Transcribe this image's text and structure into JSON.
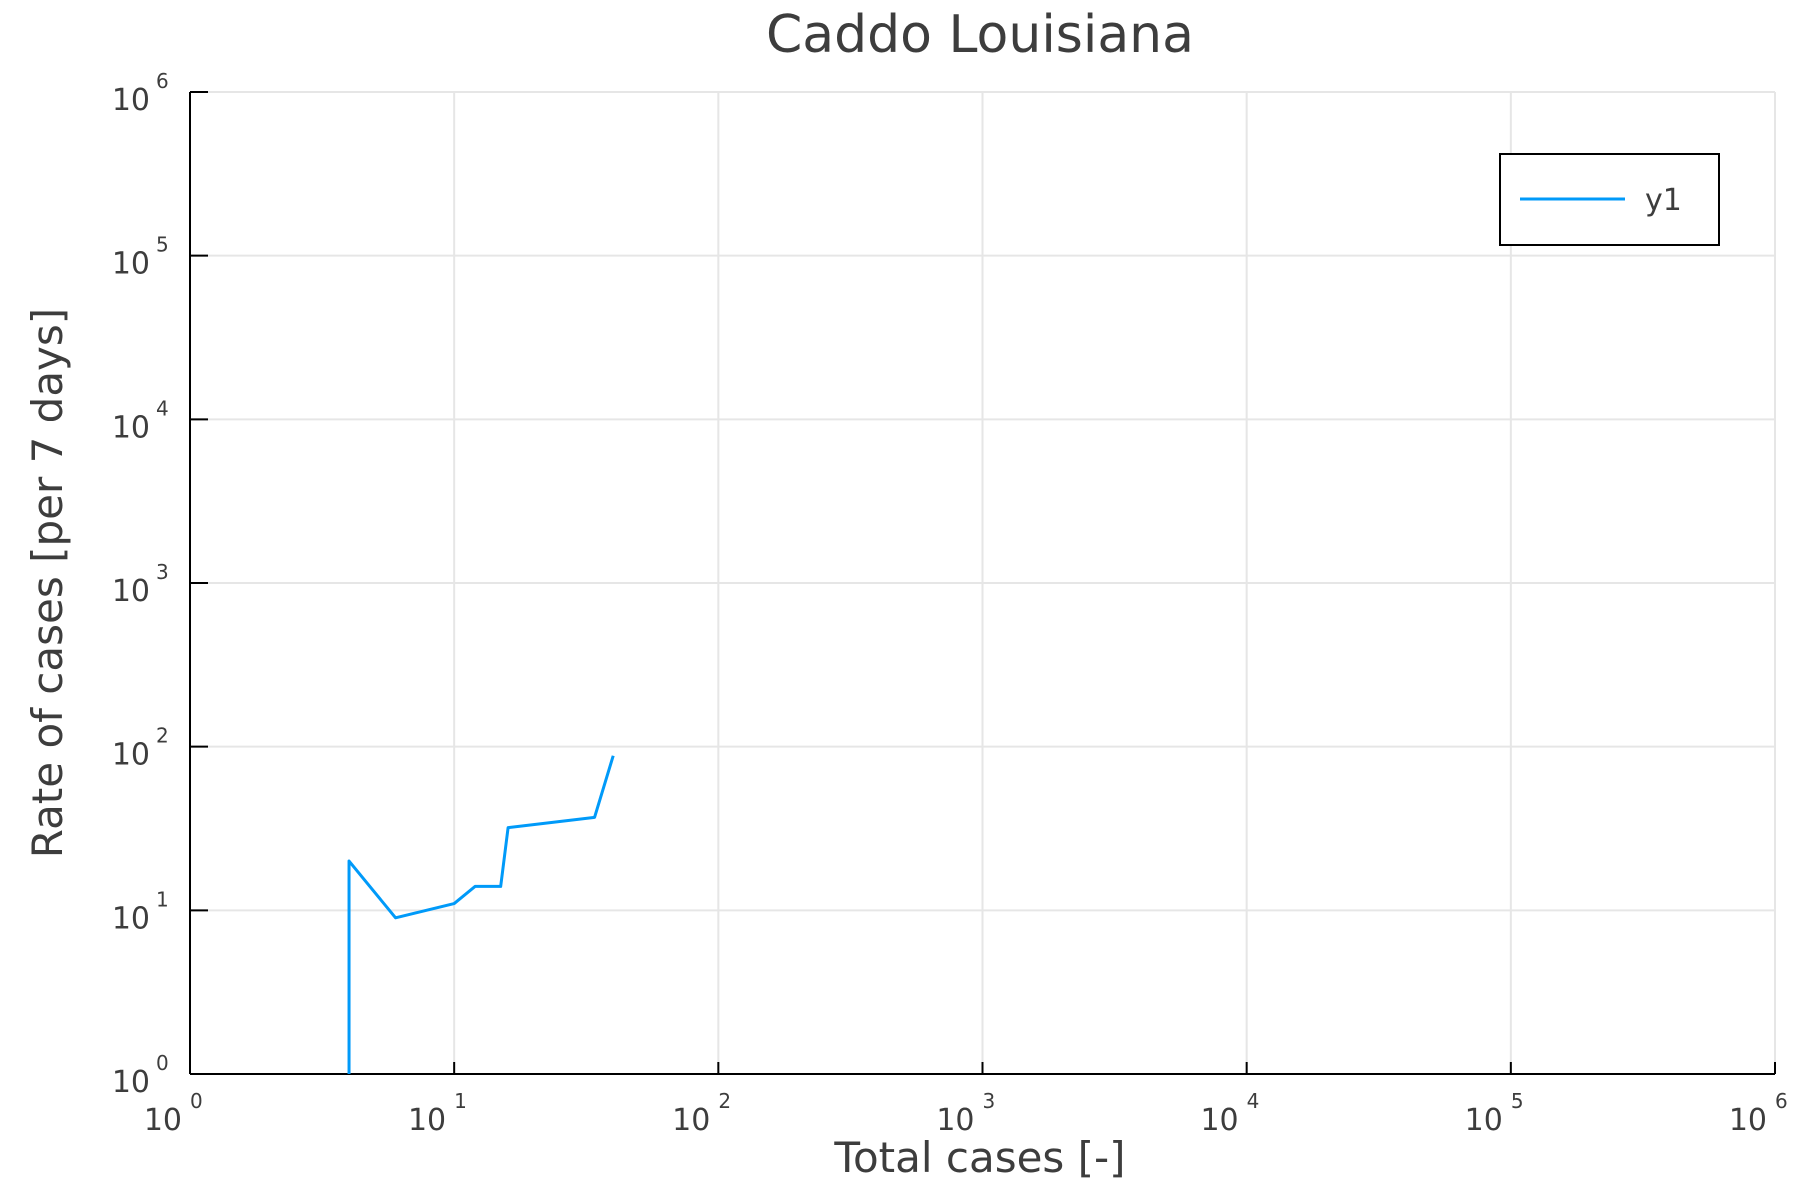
{
  "chart_data": {
    "type": "line",
    "title": "Caddo Louisiana",
    "xlabel": "Total cases [-]",
    "ylabel": "Rate of cases [per 7 days]",
    "x_scale": "log",
    "y_scale": "log",
    "xlim": [
      1,
      1000000
    ],
    "ylim": [
      1,
      1000000
    ],
    "grid": true,
    "legend_position": "top-right",
    "x_ticks": [
      {
        "value": 1,
        "base": "10",
        "exp": "0"
      },
      {
        "value": 10,
        "base": "10",
        "exp": "1"
      },
      {
        "value": 100,
        "base": "10",
        "exp": "2"
      },
      {
        "value": 1000,
        "base": "10",
        "exp": "3"
      },
      {
        "value": 10000,
        "base": "10",
        "exp": "4"
      },
      {
        "value": 100000,
        "base": "10",
        "exp": "5"
      },
      {
        "value": 1000000,
        "base": "10",
        "exp": "6"
      }
    ],
    "y_ticks": [
      {
        "value": 1,
        "base": "10",
        "exp": "0"
      },
      {
        "value": 10,
        "base": "10",
        "exp": "1"
      },
      {
        "value": 100,
        "base": "10",
        "exp": "2"
      },
      {
        "value": 1000,
        "base": "10",
        "exp": "3"
      },
      {
        "value": 10000,
        "base": "10",
        "exp": "4"
      },
      {
        "value": 100000,
        "base": "10",
        "exp": "5"
      },
      {
        "value": 1000000,
        "base": "10",
        "exp": "6"
      }
    ],
    "series": [
      {
        "name": "y1",
        "color": "#009af9",
        "x": [
          4,
          4,
          6,
          10,
          12,
          15,
          16,
          34,
          40
        ],
        "y": [
          1,
          20,
          9,
          11,
          14,
          14,
          32,
          37,
          88
        ]
      }
    ]
  }
}
